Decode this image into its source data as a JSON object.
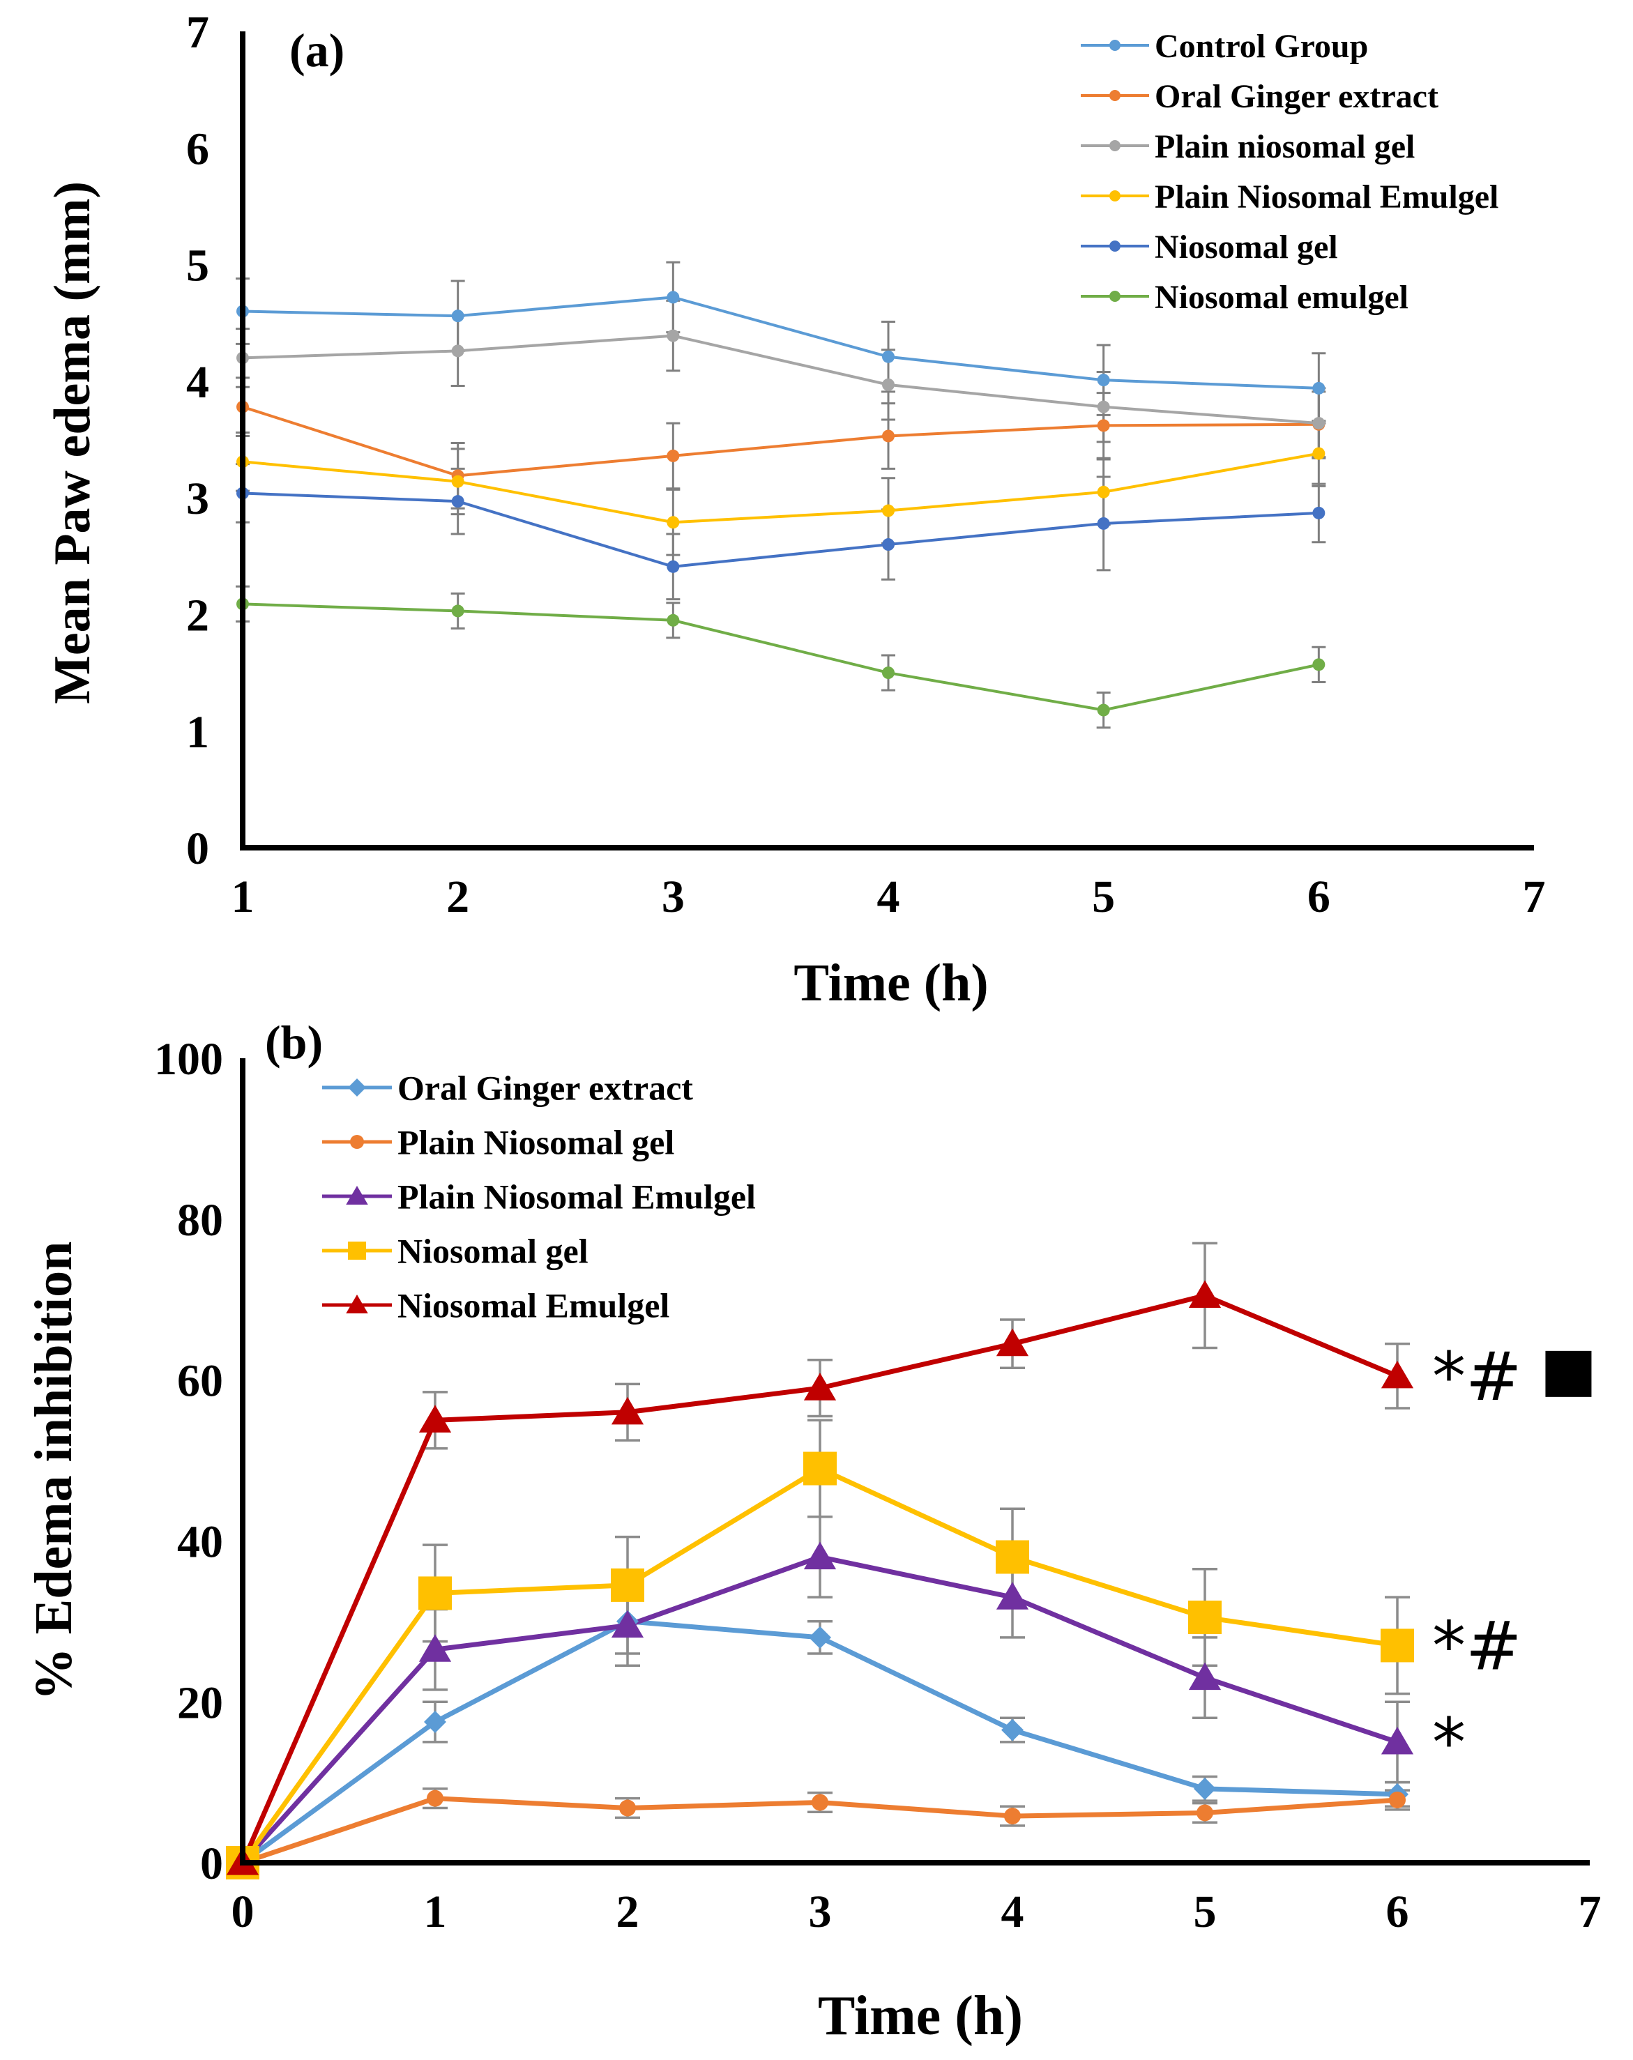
{
  "chart_data": [
    {
      "type": "line",
      "panel_label": "(a)",
      "xlabel": "Time (h)",
      "ylabel": "Mean Paw edema (mm)",
      "xlim": [
        1,
        7
      ],
      "ylim": [
        0,
        7
      ],
      "xticks": [
        "1",
        "2",
        "3",
        "4",
        "5",
        "6",
        "7"
      ],
      "yticks": [
        "0",
        "1",
        "2",
        "3",
        "4",
        "5",
        "6",
        "7"
      ],
      "legend_position": "top-right",
      "x": [
        1,
        2,
        3,
        4,
        5,
        6
      ],
      "series": [
        {
          "name": "Control Group",
          "color": "#5B9BD5",
          "marker": "circle",
          "values": [
            4.6,
            4.56,
            4.72,
            4.21,
            4.01,
            3.94
          ],
          "errors": [
            0.28,
            0.3,
            0.3,
            0.3,
            0.3,
            0.3
          ]
        },
        {
          "name": "Oral Ginger extract",
          "color": "#ED7D31",
          "marker": "circle",
          "values": [
            3.78,
            3.19,
            3.36,
            3.53,
            3.62,
            3.63
          ],
          "errors": [
            0.25,
            0.28,
            0.28,
            0.28,
            0.28,
            0.28
          ]
        },
        {
          "name": "Plain niosomal gel",
          "color": "#A5A5A5",
          "marker": "circle",
          "values": [
            4.2,
            4.26,
            4.39,
            3.97,
            3.78,
            3.64
          ],
          "errors": [
            0.25,
            0.3,
            0.3,
            0.3,
            0.3,
            0.3
          ]
        },
        {
          "name": "Plain Niosomal Emulgel",
          "color": "#FFC000",
          "marker": "circle",
          "values": [
            3.31,
            3.14,
            2.79,
            2.89,
            3.05,
            3.38
          ],
          "errors": [
            0.25,
            0.28,
            0.28,
            0.28,
            0.28,
            0.28
          ]
        },
        {
          "name": "Niosomal gel",
          "color": "#4472C4",
          "marker": "circle",
          "values": [
            3.04,
            2.97,
            2.41,
            2.6,
            2.78,
            2.87
          ],
          "errors": [
            0.25,
            0.28,
            0.28,
            0.3,
            0.4,
            0.25
          ]
        },
        {
          "name": "Niosomal emulgel",
          "color": "#70AD47",
          "marker": "circle",
          "values": [
            2.09,
            2.03,
            1.95,
            1.5,
            1.18,
            1.57
          ],
          "errors": [
            0.15,
            0.15,
            0.15,
            0.15,
            0.15,
            0.15
          ]
        }
      ]
    },
    {
      "type": "line",
      "panel_label": "(b)",
      "xlabel": "Time (h)",
      "ylabel": "% Edema inhibition",
      "xlim": [
        0,
        7
      ],
      "ylim": [
        0,
        100
      ],
      "xticks": [
        "0",
        "1",
        "2",
        "3",
        "4",
        "5",
        "6",
        "7"
      ],
      "yticks": [
        "0",
        "20",
        "40",
        "60",
        "80",
        "100"
      ],
      "legend_position": "top-left",
      "x": [
        0,
        1,
        2,
        3,
        4,
        5,
        6
      ],
      "series": [
        {
          "name": "Oral Ginger extract",
          "color": "#5B9BD5",
          "marker": "diamond",
          "values": [
            0,
            17.5,
            30,
            28,
            16.5,
            9.2,
            8.5
          ],
          "errors": [
            0,
            2.5,
            4,
            2,
            1.5,
            1.5,
            1.5
          ],
          "annotation": ""
        },
        {
          "name": "Plain Niosomal gel",
          "color": "#ED7D31",
          "marker": "circle",
          "values": [
            0,
            8,
            6.8,
            7.5,
            5.8,
            6.2,
            7.8
          ],
          "errors": [
            0,
            1.2,
            1.2,
            1.2,
            1.2,
            1.2,
            1.2
          ],
          "annotation": ""
        },
        {
          "name": "Plain Niosomal Emulgel",
          "color": "#7030A0",
          "marker": "triangle",
          "values": [
            0,
            26.5,
            29.5,
            38,
            33,
            23,
            15
          ],
          "errors": [
            0,
            5,
            5,
            5,
            5,
            5,
            5
          ],
          "annotation": "*"
        },
        {
          "name": "Niosomal gel",
          "color": "#FFC000",
          "marker": "square",
          "values": [
            0,
            33.5,
            34.5,
            49,
            38,
            30.5,
            27
          ],
          "errors": [
            0,
            6,
            6,
            6,
            6,
            6,
            6
          ],
          "annotation": "*#"
        },
        {
          "name": "Niosomal Emulgel",
          "color": "#C00000",
          "marker": "triangle",
          "values": [
            0,
            55,
            56,
            59,
            64.5,
            70.5,
            60.5
          ],
          "errors": [
            0,
            3.5,
            3.5,
            3.5,
            3,
            6.5,
            4
          ],
          "annotation": "*#"
        }
      ],
      "annotation_box_series": "Niosomal Emulgel"
    }
  ]
}
